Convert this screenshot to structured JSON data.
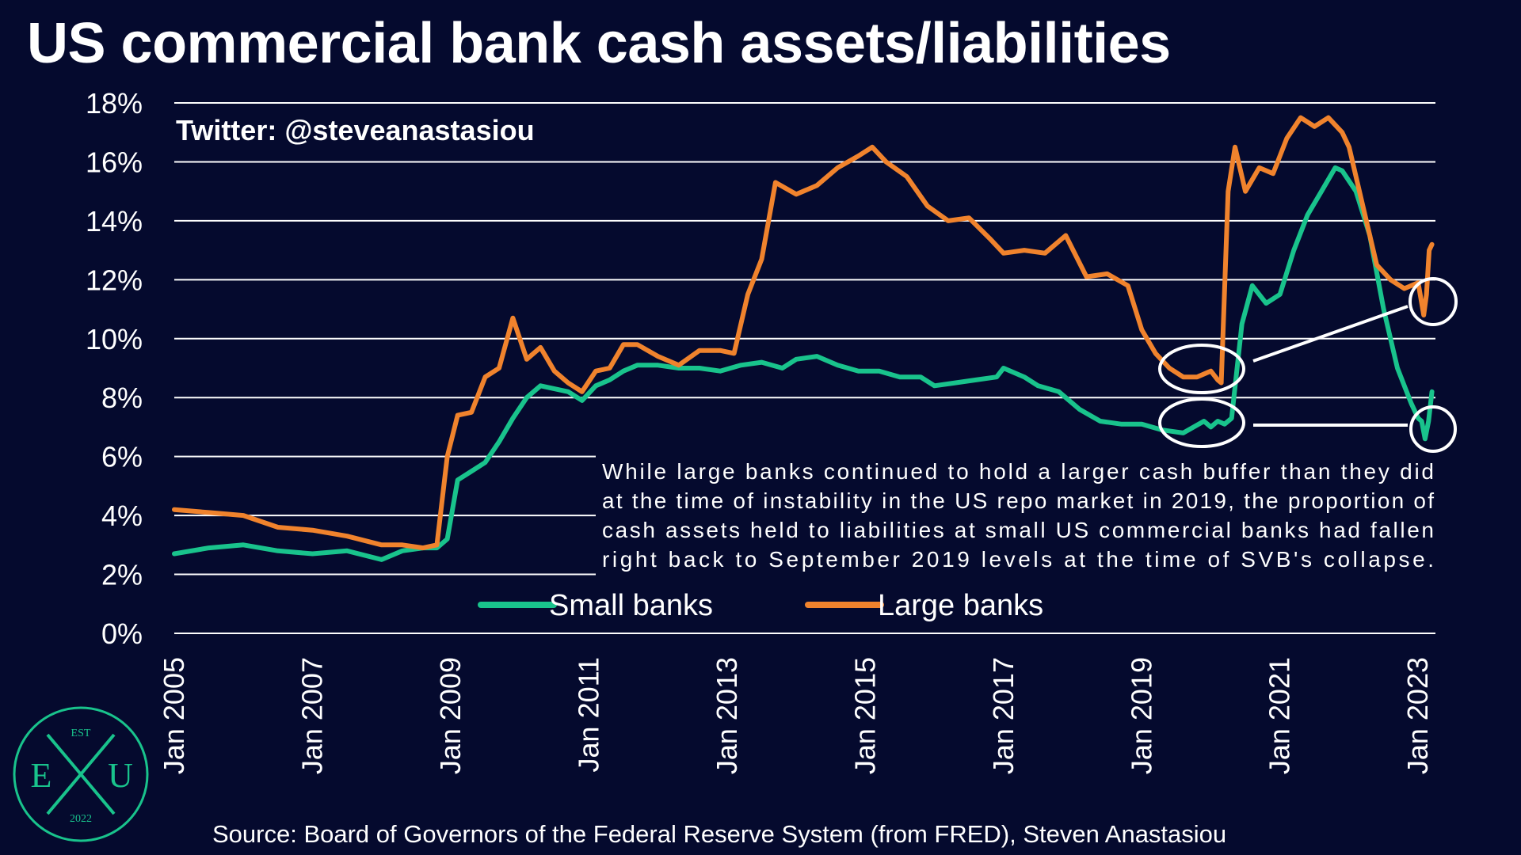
{
  "title": "US commercial bank cash assets/liabilities",
  "watermark": "Twitter: @steveanastasiou",
  "source": "Source: Board of Governors of the Federal Reserve System (from FRED), Steven Anastasiou",
  "annotation": [
    "While large banks continued to hold a larger cash buffer than they did",
    "at the time of instability in the US repo market in 2019, the proportion of",
    "cash assets held to liabilities at small US commercial banks had fallen",
    "right back to September 2019 levels at the time of SVB's collapse."
  ],
  "logo": {
    "top": "EST",
    "left": "E",
    "center": "X",
    "right": "U",
    "bottom": "2022"
  },
  "colors": {
    "background": "#050a2e",
    "small": "#19c38c",
    "large": "#f0832d",
    "grid": "#ffffff",
    "logo": "#19c38c"
  },
  "chart_data": {
    "type": "line",
    "title": "US commercial bank cash assets/liabilities",
    "xlim": [
      2005.0,
      2023.25
    ],
    "ylim": [
      0,
      18
    ],
    "grid": true,
    "legend_position": "bottom-center",
    "y_ticks": [
      {
        "value": 0,
        "label": "0%"
      },
      {
        "value": 2,
        "label": "2%"
      },
      {
        "value": 4,
        "label": "4%"
      },
      {
        "value": 6,
        "label": "6%"
      },
      {
        "value": 8,
        "label": "8%"
      },
      {
        "value": 10,
        "label": "10%"
      },
      {
        "value": 12,
        "label": "12%"
      },
      {
        "value": 14,
        "label": "14%"
      },
      {
        "value": 16,
        "label": "16%"
      },
      {
        "value": 18,
        "label": "18%"
      }
    ],
    "x_ticks": [
      {
        "value": 2005,
        "label": "Jan 2005"
      },
      {
        "value": 2007,
        "label": "Jan 2007"
      },
      {
        "value": 2009,
        "label": "Jan 2009"
      },
      {
        "value": 2011,
        "label": "Jan 2011"
      },
      {
        "value": 2013,
        "label": "Jan 2013"
      },
      {
        "value": 2015,
        "label": "Jan 2015"
      },
      {
        "value": 2017,
        "label": "Jan 2017"
      },
      {
        "value": 2019,
        "label": "Jan 2019"
      },
      {
        "value": 2021,
        "label": "Jan 2021"
      },
      {
        "value": 2023,
        "label": "Jan 2023"
      }
    ],
    "series": [
      {
        "name": "Small banks",
        "color": "#19c38c",
        "x": [
          2005.0,
          2005.5,
          2006.0,
          2006.5,
          2007.0,
          2007.5,
          2008.0,
          2008.3,
          2008.6,
          2008.8,
          2008.95,
          2009.1,
          2009.3,
          2009.5,
          2009.7,
          2009.9,
          2010.1,
          2010.3,
          2010.5,
          2010.7,
          2010.9,
          2011.1,
          2011.3,
          2011.5,
          2011.7,
          2012.0,
          2012.3,
          2012.6,
          2012.9,
          2013.2,
          2013.5,
          2013.8,
          2014.0,
          2014.3,
          2014.6,
          2014.9,
          2015.2,
          2015.5,
          2015.8,
          2016.0,
          2016.3,
          2016.6,
          2016.9,
          2017.0,
          2017.3,
          2017.5,
          2017.8,
          2018.1,
          2018.4,
          2018.7,
          2019.0,
          2019.3,
          2019.6,
          2019.9,
          2020.0,
          2020.1,
          2020.2,
          2020.3,
          2020.45,
          2020.6,
          2020.8,
          2021.0,
          2021.2,
          2021.4,
          2021.6,
          2021.8,
          2021.9,
          2022.1,
          2022.3,
          2022.5,
          2022.7,
          2022.9,
          2023.0,
          2023.05,
          2023.1,
          2023.15,
          2023.2
        ],
        "y": [
          2.7,
          2.9,
          3.0,
          2.8,
          2.7,
          2.8,
          2.5,
          2.8,
          2.9,
          2.9,
          3.2,
          5.2,
          5.5,
          5.8,
          6.5,
          7.3,
          8.0,
          8.4,
          8.3,
          8.2,
          7.9,
          8.4,
          8.6,
          8.9,
          9.1,
          9.1,
          9.0,
          9.0,
          8.9,
          9.1,
          9.2,
          9.0,
          9.3,
          9.4,
          9.1,
          8.9,
          8.9,
          8.7,
          8.7,
          8.4,
          8.5,
          8.6,
          8.7,
          9.0,
          8.7,
          8.4,
          8.2,
          7.6,
          7.2,
          7.1,
          7.1,
          6.9,
          6.8,
          7.2,
          7.0,
          7.2,
          7.1,
          7.3,
          10.5,
          11.8,
          11.2,
          11.5,
          13.0,
          14.2,
          15.0,
          15.8,
          15.7,
          15.0,
          13.5,
          11.0,
          9.0,
          7.8,
          7.3,
          7.2,
          6.6,
          7.2,
          8.2
        ]
      },
      {
        "name": "Large banks",
        "color": "#f0832d",
        "x": [
          2005.0,
          2005.5,
          2006.0,
          2006.5,
          2007.0,
          2007.5,
          2008.0,
          2008.3,
          2008.6,
          2008.8,
          2008.95,
          2009.1,
          2009.3,
          2009.5,
          2009.7,
          2009.9,
          2010.1,
          2010.3,
          2010.5,
          2010.7,
          2010.9,
          2011.1,
          2011.3,
          2011.5,
          2011.7,
          2012.0,
          2012.3,
          2012.6,
          2012.9,
          2013.1,
          2013.3,
          2013.5,
          2013.7,
          2014.0,
          2014.3,
          2014.6,
          2014.9,
          2015.1,
          2015.3,
          2015.6,
          2015.9,
          2016.2,
          2016.5,
          2016.8,
          2017.0,
          2017.3,
          2017.6,
          2017.9,
          2018.2,
          2018.5,
          2018.8,
          2019.0,
          2019.2,
          2019.4,
          2019.6,
          2019.8,
          2020.0,
          2020.1,
          2020.15,
          2020.25,
          2020.35,
          2020.5,
          2020.7,
          2020.9,
          2021.1,
          2021.3,
          2021.5,
          2021.7,
          2021.9,
          2022.0,
          2022.2,
          2022.4,
          2022.6,
          2022.8,
          2023.0,
          2023.08,
          2023.12,
          2023.16,
          2023.2
        ],
        "y": [
          4.2,
          4.1,
          4.0,
          3.6,
          3.5,
          3.3,
          3.0,
          3.0,
          2.9,
          3.0,
          6.0,
          7.4,
          7.5,
          8.7,
          9.0,
          10.7,
          9.3,
          9.7,
          8.9,
          8.5,
          8.2,
          8.9,
          9.0,
          9.8,
          9.8,
          9.4,
          9.1,
          9.6,
          9.6,
          9.5,
          11.5,
          12.7,
          15.3,
          14.9,
          15.2,
          15.8,
          16.2,
          16.5,
          16.0,
          15.5,
          14.5,
          14.0,
          14.1,
          13.4,
          12.9,
          13.0,
          12.9,
          13.5,
          12.1,
          12.2,
          11.8,
          10.3,
          9.5,
          9.0,
          8.7,
          8.7,
          8.9,
          8.6,
          8.5,
          15.0,
          16.5,
          15.0,
          15.8,
          15.6,
          16.8,
          17.5,
          17.2,
          17.5,
          17.0,
          16.5,
          14.5,
          12.5,
          12.0,
          11.7,
          11.9,
          10.8,
          11.5,
          13.0,
          13.2
        ]
      }
    ]
  }
}
